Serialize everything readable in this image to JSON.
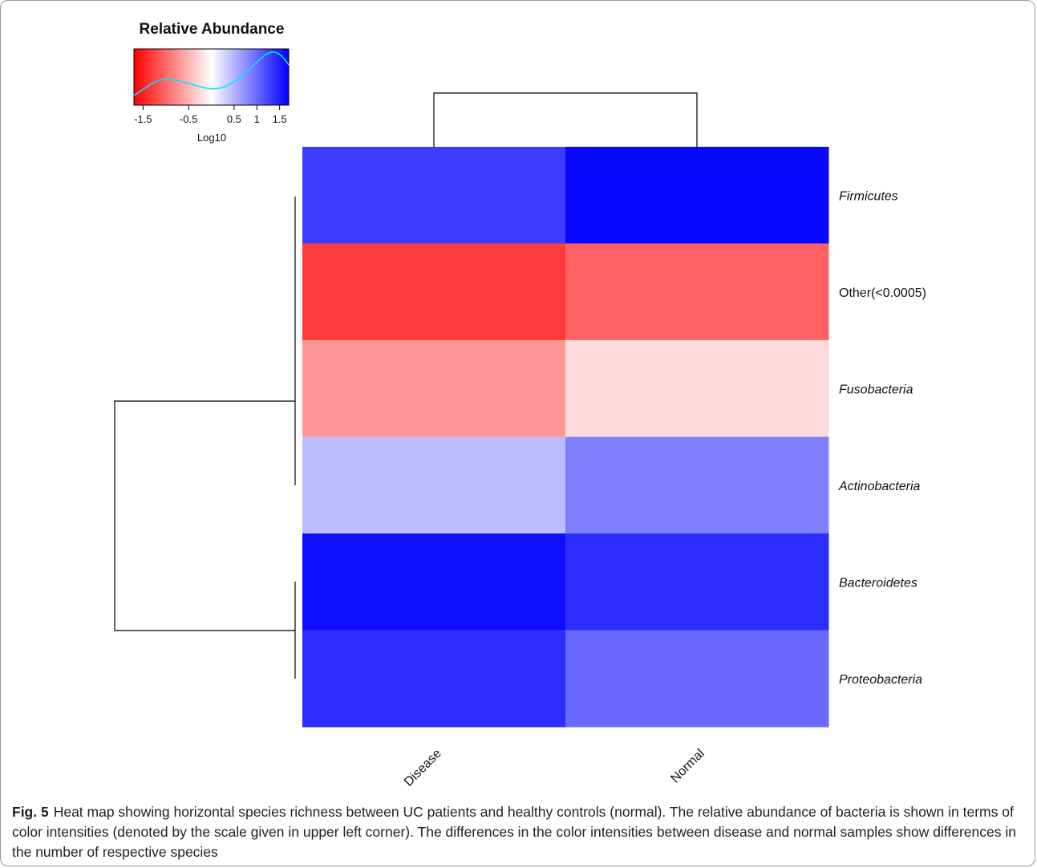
{
  "chart_data": {
    "type": "heatmap",
    "columns": [
      "Disease",
      "Normal"
    ],
    "rows": [
      "Firmicutes",
      "Other(<0.0005)",
      "Fusobacteria",
      "Actinobacteria",
      "Bacteroidetes",
      "Proteobacteria"
    ],
    "italic_rows": [
      true,
      false,
      true,
      true,
      true,
      true
    ],
    "values": [
      [
        1.3,
        1.65
      ],
      [
        -1.3,
        -1.05
      ],
      [
        -0.7,
        -0.25
      ],
      [
        0.45,
        0.85
      ],
      [
        1.6,
        1.4
      ],
      [
        1.4,
        1.0
      ]
    ],
    "colorscale": {
      "title": "Relative Abundance",
      "label": "Log10",
      "range": [
        -1.7,
        1.7
      ],
      "ticks": [
        "-1.5",
        "-0.5",
        "0.5",
        "1",
        "1.5"
      ],
      "tick_values": [
        -1.5,
        -0.5,
        0.5,
        1,
        1.5
      ],
      "low_color": "#ff0000",
      "mid_color": "#ffffff",
      "high_color": "#0000ff",
      "density_color": "#00e5ff"
    },
    "row_dendrogram": true,
    "column_dendrogram": true
  },
  "caption": {
    "label": "Fig. 5",
    "text": "Heat map showing horizontal species richness between UC patients and healthy controls (normal). The relative abundance of bacteria is shown in terms of color intensities (denoted by the scale given in upper left corner). The differences in the color intensities between disease and normal samples show differences in the number of respective species"
  }
}
